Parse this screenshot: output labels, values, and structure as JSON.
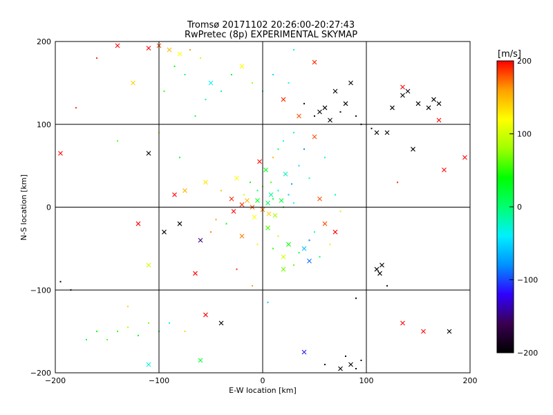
{
  "chart_data": {
    "type": "scatter",
    "title": "Tromsø 20171102 20:26:00-20:27:43",
    "subtitle": "RwPretec (8p) EXPERIMENTAL SKYMAP",
    "xlabel": "E-W location [km]",
    "ylabel": "N-S location [km]",
    "xlim": [
      -200,
      200
    ],
    "ylim": [
      -200,
      200
    ],
    "xticks": [
      -200,
      -100,
      0,
      100,
      200
    ],
    "yticks": [
      -200,
      -100,
      0,
      100,
      200
    ],
    "grid": true,
    "markers": [
      "x",
      "dot"
    ],
    "colorbar": {
      "label": "[m/s]",
      "min": -200,
      "max": 200,
      "ticks": [
        200,
        100,
        0,
        -100,
        -200
      ],
      "colormap": [
        "#000000",
        "#3a0050",
        "#3000ff",
        "#0090ff",
        "#00f0ff",
        "#00ff70",
        "#00ff00",
        "#a0ff00",
        "#ffff00",
        "#ffa000",
        "#ff0000"
      ]
    },
    "points": [
      {
        "x": 5,
        "y": 5,
        "v": 10,
        "m": "x"
      },
      {
        "x": -10,
        "y": 0,
        "v": 180,
        "m": "x"
      },
      {
        "x": -20,
        "y": 3,
        "v": 190,
        "m": "x"
      },
      {
        "x": -15,
        "y": 8,
        "v": 150,
        "m": "x"
      },
      {
        "x": 0,
        "y": -3,
        "v": 170,
        "m": "x"
      },
      {
        "x": 10,
        "y": 10,
        "v": 20,
        "m": "dot"
      },
      {
        "x": 15,
        "y": 20,
        "v": -30,
        "m": "dot"
      },
      {
        "x": 20,
        "y": 0,
        "v": 40,
        "m": "dot"
      },
      {
        "x": 8,
        "y": 30,
        "v": 60,
        "m": "dot"
      },
      {
        "x": -5,
        "y": 20,
        "v": 0,
        "m": "dot"
      },
      {
        "x": 25,
        "y": 15,
        "v": -60,
        "m": "dot"
      },
      {
        "x": 30,
        "y": 5,
        "v": -40,
        "m": "dot"
      },
      {
        "x": 12,
        "y": -10,
        "v": 80,
        "m": "x"
      },
      {
        "x": -8,
        "y": -12,
        "v": 120,
        "m": "x"
      },
      {
        "x": 3,
        "y": 45,
        "v": 30,
        "m": "x"
      },
      {
        "x": -3,
        "y": 55,
        "v": 200,
        "m": "x"
      },
      {
        "x": 10,
        "y": 60,
        "v": 150,
        "m": "dot"
      },
      {
        "x": 15,
        "y": 70,
        "v": 10,
        "m": "dot"
      },
      {
        "x": 20,
        "y": 80,
        "v": -40,
        "m": "dot"
      },
      {
        "x": 35,
        "y": 50,
        "v": -50,
        "m": "dot"
      },
      {
        "x": 40,
        "y": 70,
        "v": -80,
        "m": "dot"
      },
      {
        "x": 30,
        "y": 90,
        "v": -20,
        "m": "dot"
      },
      {
        "x": -25,
        "y": 35,
        "v": 120,
        "m": "x"
      },
      {
        "x": -30,
        "y": 10,
        "v": 190,
        "m": "x"
      },
      {
        "x": -40,
        "y": 20,
        "v": 150,
        "m": "dot"
      },
      {
        "x": 5,
        "y": -25,
        "v": 60,
        "m": "x"
      },
      {
        "x": 15,
        "y": -35,
        "v": 90,
        "m": "dot"
      },
      {
        "x": 25,
        "y": -45,
        "v": 40,
        "m": "x"
      },
      {
        "x": 35,
        "y": -55,
        "v": 20,
        "m": "dot"
      },
      {
        "x": 40,
        "y": -50,
        "v": -60,
        "m": "x"
      },
      {
        "x": 45,
        "y": -40,
        "v": -90,
        "m": "dot"
      },
      {
        "x": 50,
        "y": -30,
        "v": -20,
        "m": "dot"
      },
      {
        "x": 20,
        "y": -60,
        "v": 100,
        "m": "x"
      },
      {
        "x": 10,
        "y": -50,
        "v": 50,
        "m": "dot"
      },
      {
        "x": -5,
        "y": -45,
        "v": 130,
        "m": "dot"
      },
      {
        "x": -20,
        "y": -35,
        "v": 170,
        "m": "x"
      },
      {
        "x": -35,
        "y": -20,
        "v": 30,
        "m": "dot"
      },
      {
        "x": -45,
        "y": -15,
        "v": 160,
        "m": "dot"
      },
      {
        "x": 60,
        "y": -20,
        "v": 180,
        "m": "x"
      },
      {
        "x": 70,
        "y": -30,
        "v": 200,
        "m": "x"
      },
      {
        "x": 65,
        "y": -45,
        "v": 130,
        "m": "dot"
      },
      {
        "x": 55,
        "y": -60,
        "v": 10,
        "m": "dot"
      },
      {
        "x": -90,
        "y": 190,
        "v": 150,
        "m": "x"
      },
      {
        "x": -100,
        "y": 195,
        "v": 180,
        "m": "x"
      },
      {
        "x": -80,
        "y": 185,
        "v": 120,
        "m": "x"
      },
      {
        "x": -110,
        "y": 192,
        "v": 200,
        "m": "x"
      },
      {
        "x": -70,
        "y": 190,
        "v": 160,
        "m": "dot"
      },
      {
        "x": -60,
        "y": 180,
        "v": 100,
        "m": "dot"
      },
      {
        "x": -85,
        "y": 170,
        "v": 40,
        "m": "dot"
      },
      {
        "x": -75,
        "y": 160,
        "v": 0,
        "m": "dot"
      },
      {
        "x": -50,
        "y": 150,
        "v": -40,
        "m": "x"
      },
      {
        "x": -40,
        "y": 140,
        "v": -20,
        "m": "dot"
      },
      {
        "x": -30,
        "y": 160,
        "v": 30,
        "m": "dot"
      },
      {
        "x": -20,
        "y": 170,
        "v": 120,
        "m": "x"
      },
      {
        "x": -10,
        "y": 150,
        "v": 80,
        "m": "dot"
      },
      {
        "x": -55,
        "y": 130,
        "v": -10,
        "m": "dot"
      },
      {
        "x": -65,
        "y": 110,
        "v": 20,
        "m": "dot"
      },
      {
        "x": -95,
        "y": 140,
        "v": 50,
        "m": "dot"
      },
      {
        "x": -140,
        "y": 195,
        "v": 200,
        "m": "x"
      },
      {
        "x": -160,
        "y": 180,
        "v": 190,
        "m": "dot"
      },
      {
        "x": -125,
        "y": 150,
        "v": 140,
        "m": "x"
      },
      {
        "x": 0,
        "y": 140,
        "v": -30,
        "m": "dot"
      },
      {
        "x": 10,
        "y": 160,
        "v": -50,
        "m": "dot"
      },
      {
        "x": 20,
        "y": 130,
        "v": 190,
        "m": "x"
      },
      {
        "x": 25,
        "y": 150,
        "v": -40,
        "m": "dot"
      },
      {
        "x": 30,
        "y": 190,
        "v": -30,
        "m": "dot"
      },
      {
        "x": 50,
        "y": 175,
        "v": 190,
        "m": "x"
      },
      {
        "x": 55,
        "y": 115,
        "v": -200,
        "m": "x"
      },
      {
        "x": 60,
        "y": 120,
        "v": -200,
        "m": "x"
      },
      {
        "x": 50,
        "y": 110,
        "v": -200,
        "m": "dot"
      },
      {
        "x": 65,
        "y": 105,
        "v": -200,
        "m": "x"
      },
      {
        "x": 75,
        "y": 115,
        "v": -200,
        "m": "dot"
      },
      {
        "x": 80,
        "y": 125,
        "v": -200,
        "m": "x"
      },
      {
        "x": 85,
        "y": 150,
        "v": -200,
        "m": "x"
      },
      {
        "x": 90,
        "y": 110,
        "v": -200,
        "m": "dot"
      },
      {
        "x": 95,
        "y": 100,
        "v": -200,
        "m": "dot"
      },
      {
        "x": 105,
        "y": 95,
        "v": -200,
        "m": "dot"
      },
      {
        "x": 110,
        "y": 90,
        "v": -200,
        "m": "x"
      },
      {
        "x": 120,
        "y": 90,
        "v": -200,
        "m": "x"
      },
      {
        "x": 135,
        "y": 135,
        "v": -200,
        "m": "x"
      },
      {
        "x": 140,
        "y": 140,
        "v": -200,
        "m": "x"
      },
      {
        "x": 150,
        "y": 125,
        "v": -200,
        "m": "x"
      },
      {
        "x": 160,
        "y": 120,
        "v": -200,
        "m": "x"
      },
      {
        "x": 165,
        "y": 130,
        "v": -200,
        "m": "x"
      },
      {
        "x": 170,
        "y": 125,
        "v": -200,
        "m": "x"
      },
      {
        "x": 145,
        "y": 70,
        "v": -200,
        "m": "x"
      },
      {
        "x": 125,
        "y": 120,
        "v": -200,
        "m": "x"
      },
      {
        "x": 40,
        "y": 125,
        "v": -200,
        "m": "dot"
      },
      {
        "x": 70,
        "y": 140,
        "v": -200,
        "m": "x"
      },
      {
        "x": 135,
        "y": 145,
        "v": 200,
        "m": "x"
      },
      {
        "x": 170,
        "y": 105,
        "v": 200,
        "m": "x"
      },
      {
        "x": 175,
        "y": 45,
        "v": 200,
        "m": "x"
      },
      {
        "x": 195,
        "y": 60,
        "v": 200,
        "m": "x"
      },
      {
        "x": 130,
        "y": 30,
        "v": 190,
        "m": "dot"
      },
      {
        "x": 110,
        "y": -75,
        "v": -200,
        "m": "x"
      },
      {
        "x": 115,
        "y": -70,
        "v": -200,
        "m": "x"
      },
      {
        "x": 113,
        "y": -80,
        "v": -200,
        "m": "x"
      },
      {
        "x": 120,
        "y": -95,
        "v": -200,
        "m": "dot"
      },
      {
        "x": 135,
        "y": -140,
        "v": 200,
        "m": "x"
      },
      {
        "x": 155,
        "y": -150,
        "v": 200,
        "m": "x"
      },
      {
        "x": 180,
        "y": -150,
        "v": -200,
        "m": "x"
      },
      {
        "x": 85,
        "y": -190,
        "v": -200,
        "m": "x"
      },
      {
        "x": 90,
        "y": -195,
        "v": -200,
        "m": "dot"
      },
      {
        "x": 80,
        "y": -180,
        "v": -200,
        "m": "dot"
      },
      {
        "x": 95,
        "y": -185,
        "v": -200,
        "m": "dot"
      },
      {
        "x": 75,
        "y": -195,
        "v": -200,
        "m": "x"
      },
      {
        "x": 60,
        "y": -190,
        "v": -200,
        "m": "dot"
      },
      {
        "x": 40,
        "y": -175,
        "v": -110,
        "m": "x"
      },
      {
        "x": -160,
        "y": -150,
        "v": 40,
        "m": "dot"
      },
      {
        "x": -150,
        "y": -160,
        "v": 60,
        "m": "dot"
      },
      {
        "x": -140,
        "y": -150,
        "v": 50,
        "m": "dot"
      },
      {
        "x": -170,
        "y": -160,
        "v": 20,
        "m": "dot"
      },
      {
        "x": -130,
        "y": -145,
        "v": 90,
        "m": "dot"
      },
      {
        "x": -120,
        "y": -155,
        "v": 30,
        "m": "dot"
      },
      {
        "x": -110,
        "y": -140,
        "v": 70,
        "m": "dot"
      },
      {
        "x": -100,
        "y": -150,
        "v": 10,
        "m": "dot"
      },
      {
        "x": -90,
        "y": -140,
        "v": -30,
        "m": "dot"
      },
      {
        "x": -60,
        "y": -185,
        "v": 20,
        "m": "x"
      },
      {
        "x": -55,
        "y": -130,
        "v": 200,
        "m": "x"
      },
      {
        "x": -110,
        "y": -190,
        "v": -30,
        "m": "x"
      },
      {
        "x": -40,
        "y": -140,
        "v": -200,
        "m": "x"
      },
      {
        "x": -75,
        "y": -150,
        "v": 140,
        "m": "dot"
      },
      {
        "x": -130,
        "y": -120,
        "v": 140,
        "m": "dot"
      },
      {
        "x": -195,
        "y": -90,
        "v": -200,
        "m": "dot"
      },
      {
        "x": -185,
        "y": -100,
        "v": -200,
        "m": "dot"
      },
      {
        "x": -110,
        "y": 65,
        "v": -200,
        "m": "x"
      },
      {
        "x": -95,
        "y": -30,
        "v": -200,
        "m": "x"
      },
      {
        "x": -80,
        "y": -20,
        "v": -200,
        "m": "x"
      },
      {
        "x": -60,
        "y": -40,
        "v": -150,
        "m": "x"
      },
      {
        "x": -65,
        "y": -80,
        "v": 200,
        "m": "x"
      },
      {
        "x": -120,
        "y": -20,
        "v": 200,
        "m": "x"
      },
      {
        "x": -110,
        "y": -70,
        "v": 100,
        "m": "x"
      },
      {
        "x": -85,
        "y": 15,
        "v": 200,
        "m": "x"
      },
      {
        "x": -75,
        "y": 20,
        "v": 150,
        "m": "x"
      },
      {
        "x": -55,
        "y": 30,
        "v": 130,
        "m": "x"
      },
      {
        "x": -50,
        "y": -30,
        "v": 170,
        "m": "dot"
      },
      {
        "x": -100,
        "y": 90,
        "v": 100,
        "m": "dot"
      },
      {
        "x": -80,
        "y": 60,
        "v": 20,
        "m": "dot"
      },
      {
        "x": -140,
        "y": 80,
        "v": 60,
        "m": "dot"
      },
      {
        "x": -180,
        "y": 120,
        "v": 190,
        "m": "dot"
      },
      {
        "x": -195,
        "y": 65,
        "v": 200,
        "m": "x"
      },
      {
        "x": 45,
        "y": 35,
        "v": -20,
        "m": "dot"
      },
      {
        "x": 55,
        "y": 10,
        "v": 180,
        "m": "x"
      },
      {
        "x": 70,
        "y": 15,
        "v": -20,
        "m": "dot"
      },
      {
        "x": 75,
        "y": -5,
        "v": 90,
        "m": "dot"
      },
      {
        "x": 60,
        "y": 60,
        "v": -30,
        "m": "dot"
      },
      {
        "x": 50,
        "y": 85,
        "v": 180,
        "m": "x"
      },
      {
        "x": 35,
        "y": 110,
        "v": 180,
        "m": "x"
      },
      {
        "x": 90,
        "y": -110,
        "v": -200,
        "m": "dot"
      },
      {
        "x": 20,
        "y": -75,
        "v": 70,
        "m": "x"
      },
      {
        "x": 30,
        "y": -70,
        "v": 60,
        "m": "dot"
      },
      {
        "x": 45,
        "y": -65,
        "v": -90,
        "m": "x"
      },
      {
        "x": -25,
        "y": -75,
        "v": 190,
        "m": "dot"
      },
      {
        "x": -10,
        "y": -95,
        "v": 160,
        "m": "dot"
      },
      {
        "x": 5,
        "y": -115,
        "v": -60,
        "m": "dot"
      },
      {
        "x": -5,
        "y": 8,
        "v": 30,
        "m": "x"
      },
      {
        "x": 8,
        "y": 15,
        "v": -10,
        "m": "x"
      },
      {
        "x": 18,
        "y": 8,
        "v": 20,
        "m": "x"
      },
      {
        "x": 0,
        "y": 25,
        "v": 70,
        "m": "dot"
      },
      {
        "x": -12,
        "y": 30,
        "v": 40,
        "m": "dot"
      },
      {
        "x": 28,
        "y": 28,
        "v": -70,
        "m": "dot"
      },
      {
        "x": 22,
        "y": 40,
        "v": -20,
        "m": "x"
      },
      {
        "x": -18,
        "y": 15,
        "v": 100,
        "m": "dot"
      },
      {
        "x": -28,
        "y": -5,
        "v": 200,
        "m": "x"
      },
      {
        "x": 6,
        "y": -8,
        "v": 140,
        "m": "x"
      }
    ]
  }
}
